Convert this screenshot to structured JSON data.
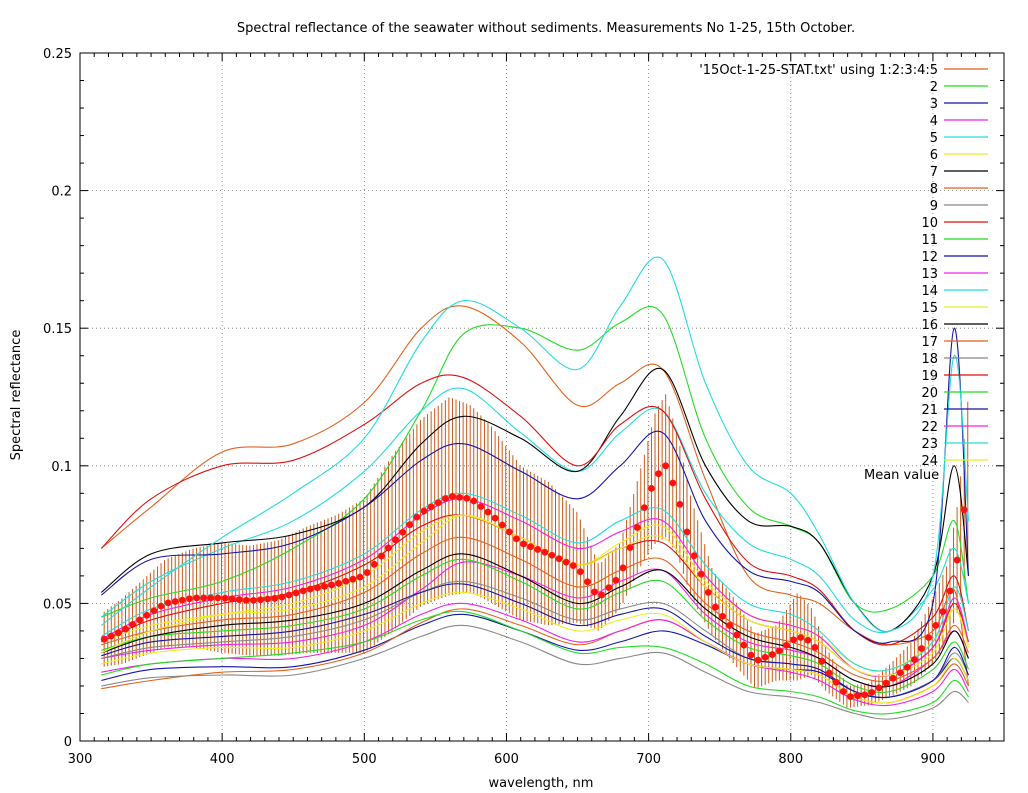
{
  "chart_data": {
    "type": "line",
    "title": "Spectral reflectance of the seawater without sediments. Measurements No 1-25, 15th October.",
    "xlabel": "wavelength, nm",
    "ylabel": "Spectral reflectance",
    "xlim": [
      300,
      950
    ],
    "ylim": [
      0,
      0.25
    ],
    "xticks": [
      300,
      400,
      500,
      600,
      700,
      800,
      900
    ],
    "yticks": [
      0,
      0.05,
      0.1,
      0.15,
      0.2,
      0.25
    ],
    "xtick_labels": [
      "300",
      "400",
      "500",
      "600",
      "700",
      "800",
      "900"
    ],
    "ytick_labels": [
      "0",
      "0.05",
      "0.1",
      "0.15",
      "0.2",
      "0.25"
    ],
    "grid": true,
    "legend_position": "top-right",
    "annotation": "Mean value",
    "series_x": [
      315,
      350,
      400,
      450,
      500,
      540,
      570,
      610,
      650,
      680,
      710,
      740,
      770,
      800,
      820,
      845,
      870,
      900,
      915,
      925
    ],
    "series": [
      {
        "name": "'15Oct-1-25-STAT.txt' using 1:2:3:4:5",
        "color": "#e2621d",
        "values": [
          0.07,
          0.085,
          0.105,
          0.108,
          0.123,
          0.15,
          0.158,
          0.145,
          0.122,
          0.13,
          0.135,
          0.095,
          0.06,
          0.053,
          0.05,
          0.04,
          0.035,
          0.04,
          0.055,
          0.02
        ]
      },
      {
        "name": "2",
        "color": "#22dd22",
        "values": [
          0.045,
          0.052,
          0.058,
          0.07,
          0.088,
          0.12,
          0.148,
          0.15,
          0.142,
          0.152,
          0.155,
          0.11,
          0.085,
          0.078,
          0.072,
          0.05,
          0.048,
          0.06,
          0.08,
          0.05
        ]
      },
      {
        "name": "3",
        "color": "#1414a8",
        "values": [
          0.022,
          0.026,
          0.027,
          0.027,
          0.033,
          0.042,
          0.046,
          0.04,
          0.033,
          0.036,
          0.04,
          0.035,
          0.028,
          0.026,
          0.025,
          0.018,
          0.016,
          0.022,
          0.03,
          0.022
        ]
      },
      {
        "name": "4",
        "color": "#ee22ee",
        "values": [
          0.03,
          0.033,
          0.035,
          0.036,
          0.042,
          0.055,
          0.065,
          0.06,
          0.052,
          0.058,
          0.062,
          0.046,
          0.036,
          0.033,
          0.03,
          0.022,
          0.02,
          0.03,
          0.04,
          0.03
        ]
      },
      {
        "name": "5",
        "color": "#22dddd",
        "values": [
          0.045,
          0.058,
          0.07,
          0.08,
          0.098,
          0.12,
          0.128,
          0.112,
          0.098,
          0.112,
          0.12,
          0.09,
          0.072,
          0.066,
          0.06,
          0.044,
          0.04,
          0.055,
          0.07,
          0.05
        ]
      },
      {
        "name": "6",
        "color": "#eeee22",
        "values": [
          0.036,
          0.042,
          0.046,
          0.048,
          0.056,
          0.072,
          0.082,
          0.074,
          0.064,
          0.072,
          0.078,
          0.058,
          0.046,
          0.042,
          0.038,
          0.028,
          0.026,
          0.036,
          0.048,
          0.035
        ]
      },
      {
        "name": "7",
        "color": "#000000",
        "values": [
          0.054,
          0.068,
          0.072,
          0.075,
          0.085,
          0.108,
          0.118,
          0.11,
          0.098,
          0.118,
          0.135,
          0.1,
          0.08,
          0.078,
          0.072,
          0.05,
          0.04,
          0.06,
          0.1,
          0.06
        ]
      },
      {
        "name": "8",
        "color": "#e2621d",
        "values": [
          0.019,
          0.022,
          0.025,
          0.026,
          0.032,
          0.043,
          0.048,
          0.042,
          0.035,
          0.04,
          0.044,
          0.036,
          0.028,
          0.026,
          0.024,
          0.016,
          0.014,
          0.02,
          0.028,
          0.02
        ]
      },
      {
        "name": "9",
        "color": "#888888",
        "values": [
          0.02,
          0.023,
          0.024,
          0.024,
          0.03,
          0.038,
          0.042,
          0.036,
          0.028,
          0.03,
          0.032,
          0.025,
          0.018,
          0.016,
          0.014,
          0.01,
          0.008,
          0.012,
          0.018,
          0.014
        ]
      },
      {
        "name": "10",
        "color": "#dd1111",
        "values": [
          0.07,
          0.088,
          0.1,
          0.102,
          0.115,
          0.13,
          0.132,
          0.118,
          0.1,
          0.115,
          0.12,
          0.088,
          0.065,
          0.06,
          0.055,
          0.04,
          0.035,
          0.045,
          0.06,
          0.04
        ]
      },
      {
        "name": "11",
        "color": "#22dd22",
        "values": [
          0.033,
          0.038,
          0.04,
          0.042,
          0.048,
          0.06,
          0.066,
          0.058,
          0.048,
          0.054,
          0.058,
          0.044,
          0.034,
          0.031,
          0.028,
          0.02,
          0.018,
          0.026,
          0.036,
          0.026
        ]
      },
      {
        "name": "12",
        "color": "#1414a8",
        "values": [
          0.053,
          0.066,
          0.068,
          0.072,
          0.085,
          0.102,
          0.108,
          0.098,
          0.088,
          0.1,
          0.112,
          0.08,
          0.062,
          0.058,
          0.054,
          0.04,
          0.036,
          0.05,
          0.15,
          0.06
        ]
      },
      {
        "name": "13",
        "color": "#ee22ee",
        "values": [
          0.025,
          0.028,
          0.03,
          0.03,
          0.036,
          0.046,
          0.05,
          0.044,
          0.036,
          0.04,
          0.044,
          0.036,
          0.028,
          0.025,
          0.022,
          0.015,
          0.013,
          0.018,
          0.026,
          0.018
        ]
      },
      {
        "name": "14",
        "color": "#22dddd",
        "values": [
          0.042,
          0.056,
          0.074,
          0.09,
          0.11,
          0.145,
          0.16,
          0.15,
          0.135,
          0.158,
          0.175,
          0.13,
          0.1,
          0.09,
          0.075,
          0.05,
          0.04,
          0.06,
          0.14,
          0.08
        ]
      },
      {
        "name": "15",
        "color": "#eeee22",
        "values": [
          0.028,
          0.032,
          0.034,
          0.034,
          0.04,
          0.05,
          0.054,
          0.048,
          0.04,
          0.044,
          0.046,
          0.036,
          0.028,
          0.026,
          0.024,
          0.016,
          0.014,
          0.02,
          0.03,
          0.022
        ]
      },
      {
        "name": "16",
        "color": "#000000",
        "values": [
          0.032,
          0.038,
          0.042,
          0.044,
          0.05,
          0.062,
          0.068,
          0.06,
          0.05,
          0.056,
          0.062,
          0.048,
          0.038,
          0.034,
          0.03,
          0.022,
          0.02,
          0.028,
          0.04,
          0.03
        ]
      },
      {
        "name": "17",
        "color": "#e2621d",
        "values": [
          0.035,
          0.04,
          0.044,
          0.046,
          0.054,
          0.068,
          0.074,
          0.066,
          0.056,
          0.062,
          0.066,
          0.05,
          0.04,
          0.036,
          0.032,
          0.024,
          0.022,
          0.03,
          0.042,
          0.032
        ]
      },
      {
        "name": "18",
        "color": "#888888",
        "values": [
          0.03,
          0.034,
          0.036,
          0.038,
          0.044,
          0.054,
          0.058,
          0.052,
          0.044,
          0.048,
          0.05,
          0.04,
          0.03,
          0.028,
          0.026,
          0.018,
          0.016,
          0.022,
          0.032,
          0.024
        ]
      },
      {
        "name": "19",
        "color": "#dd1111",
        "values": [
          0.036,
          0.044,
          0.05,
          0.054,
          0.064,
          0.078,
          0.082,
          0.074,
          0.064,
          0.07,
          0.072,
          0.056,
          0.044,
          0.04,
          0.036,
          0.026,
          0.024,
          0.034,
          0.05,
          0.036
        ]
      },
      {
        "name": "20",
        "color": "#22dd22",
        "values": [
          0.024,
          0.028,
          0.03,
          0.032,
          0.036,
          0.044,
          0.047,
          0.04,
          0.032,
          0.034,
          0.034,
          0.028,
          0.02,
          0.018,
          0.016,
          0.011,
          0.01,
          0.014,
          0.022,
          0.016
        ]
      },
      {
        "name": "21",
        "color": "#1414a8",
        "values": [
          0.031,
          0.036,
          0.038,
          0.04,
          0.046,
          0.054,
          0.057,
          0.05,
          0.042,
          0.046,
          0.048,
          0.038,
          0.03,
          0.028,
          0.026,
          0.018,
          0.016,
          0.022,
          0.034,
          0.024
        ]
      },
      {
        "name": "22",
        "color": "#ee22ee",
        "values": [
          0.037,
          0.046,
          0.052,
          0.056,
          0.066,
          0.082,
          0.088,
          0.08,
          0.07,
          0.076,
          0.08,
          0.06,
          0.046,
          0.042,
          0.038,
          0.026,
          0.024,
          0.034,
          0.052,
          0.036
        ]
      },
      {
        "name": "23",
        "color": "#22dddd",
        "values": [
          0.038,
          0.048,
          0.054,
          0.058,
          0.068,
          0.084,
          0.09,
          0.082,
          0.072,
          0.08,
          0.084,
          0.064,
          0.05,
          0.046,
          0.04,
          0.028,
          0.026,
          0.036,
          0.056,
          0.04
        ]
      },
      {
        "name": "24",
        "color": "#eeee22",
        "values": [
          0.032,
          0.04,
          0.046,
          0.05,
          0.06,
          0.076,
          0.082,
          0.074,
          0.064,
          0.07,
          0.074,
          0.056,
          0.044,
          0.04,
          0.036,
          0.026,
          0.024,
          0.032,
          0.048,
          0.034
        ]
      }
    ],
    "mean": {
      "name": "Mean value",
      "color": "#ff1111",
      "errorbar_color": "#c85a14",
      "x": [
        317,
        330,
        345,
        360,
        380,
        400,
        420,
        440,
        460,
        480,
        500,
        520,
        540,
        560,
        575,
        590,
        610,
        630,
        650,
        665,
        680,
        695,
        705,
        712,
        720,
        730,
        745,
        760,
        775,
        790,
        805,
        815,
        825,
        840,
        855,
        870,
        885,
        900,
        910,
        918,
        925
      ],
      "y": [
        0.037,
        0.04,
        0.045,
        0.05,
        0.052,
        0.052,
        0.051,
        0.052,
        0.055,
        0.057,
        0.06,
        0.072,
        0.083,
        0.089,
        0.088,
        0.082,
        0.072,
        0.068,
        0.063,
        0.052,
        0.06,
        0.082,
        0.096,
        0.1,
        0.09,
        0.07,
        0.05,
        0.04,
        0.029,
        0.032,
        0.038,
        0.036,
        0.026,
        0.016,
        0.017,
        0.022,
        0.028,
        0.04,
        0.05,
        0.068,
        0.096
      ],
      "err": [
        0.01,
        0.012,
        0.014,
        0.016,
        0.018,
        0.02,
        0.02,
        0.021,
        0.023,
        0.025,
        0.028,
        0.032,
        0.034,
        0.036,
        0.034,
        0.032,
        0.028,
        0.026,
        0.02,
        0.012,
        0.012,
        0.018,
        0.024,
        0.026,
        0.022,
        0.018,
        0.012,
        0.012,
        0.01,
        0.01,
        0.016,
        0.012,
        0.008,
        0.004,
        0.004,
        0.006,
        0.008,
        0.012,
        0.014,
        0.02,
        0.03
      ]
    }
  }
}
